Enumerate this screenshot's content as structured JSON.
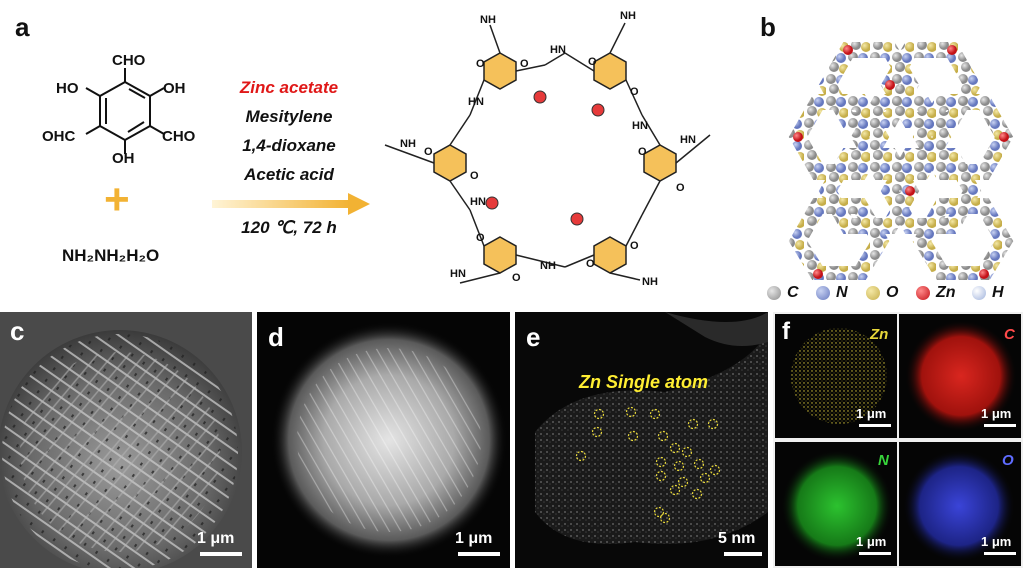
{
  "panel_labels": {
    "a": "a",
    "b": "b",
    "c": "c",
    "d": "d",
    "e": "e",
    "f": "f"
  },
  "reactants": {
    "cho_top": "CHO",
    "oh_left": "HO",
    "oh_right": "OH",
    "cho_left": "OHC",
    "cho_right": "CHO",
    "oh_bottom": "OH",
    "plus": "+",
    "hydrazine": "NH₂NH₂H₂O"
  },
  "conditions": {
    "catalyst": "Zinc acetate",
    "solvent1": "Mesitylene",
    "solvent2": "1,4-dioxane",
    "acid": "Acetic acid",
    "temp_time": "120 ℃, 72 h"
  },
  "legend": [
    {
      "symbol": "C",
      "color": "#9a9a9a"
    },
    {
      "symbol": "N",
      "color": "#7d8fcf"
    },
    {
      "symbol": "O",
      "color": "#d8c56a"
    },
    {
      "symbol": "Zn",
      "color": "#e0202a"
    },
    {
      "symbol": "H",
      "color": "#c9d6ef"
    }
  ],
  "panel_e_title": "Zn Single atom",
  "scale": {
    "c": "1 μm",
    "d": "1 μm",
    "e": "5 nm",
    "f_zn": "1 μm",
    "f_c": "1 μm",
    "f_n": "1 μm",
    "f_o": "1 μm"
  },
  "eds_tags": {
    "zn": "Zn",
    "c": "C",
    "n": "N",
    "o": "O"
  },
  "colors": {
    "accent_red": "#e01818",
    "arrow": "#f2b233",
    "zn_tag": "#e8d83a",
    "c_tag": "#ff4a4a",
    "n_tag": "#37d43a",
    "o_tag": "#5f6cff"
  }
}
